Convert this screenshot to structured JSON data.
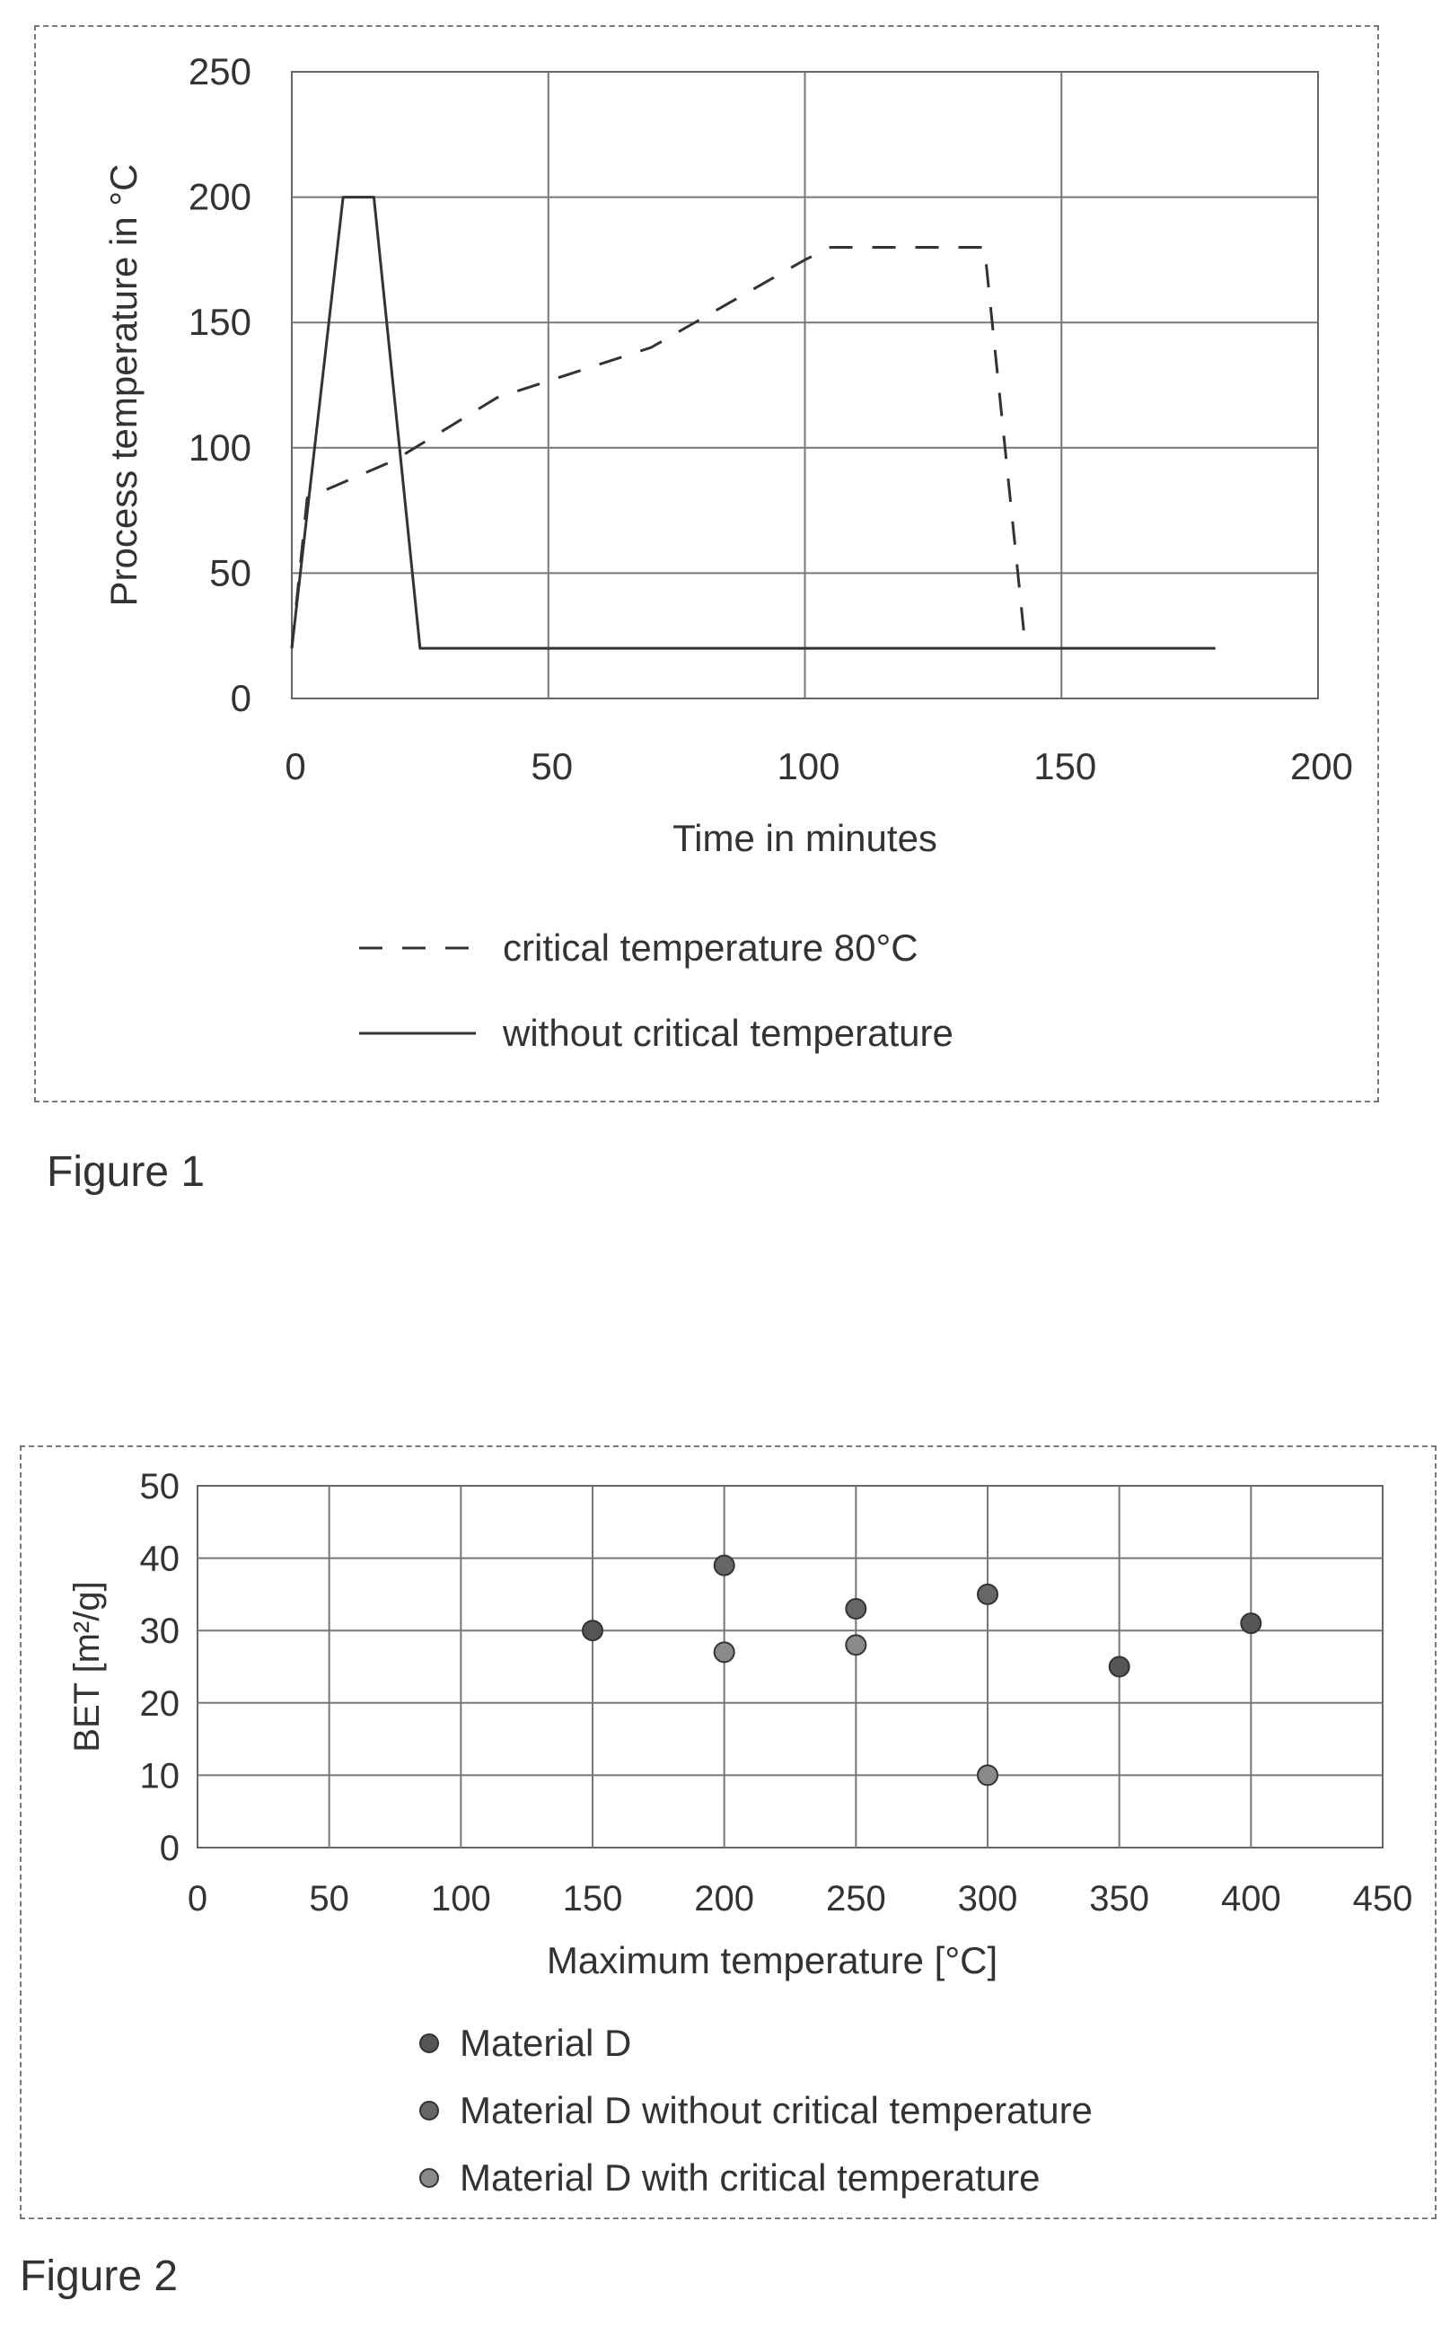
{
  "figure1": {
    "caption": "Figure 1",
    "chart_data": {
      "type": "line",
      "xlabel": "Time in minutes",
      "ylabel": "Process temperature in °C",
      "xlim": [
        0,
        200
      ],
      "ylim": [
        0,
        250
      ],
      "xticks": [
        "0",
        "50",
        "100",
        "150",
        "200"
      ],
      "yticks": [
        "0",
        "50",
        "100",
        "150",
        "200",
        "250"
      ],
      "grid": true,
      "legend_position": "bottom",
      "series": [
        {
          "name": "critical temperature 80°C",
          "style": "dashed",
          "points": [
            [
              0,
              20
            ],
            [
              3,
              80
            ],
            [
              20,
              95
            ],
            [
              40,
              120
            ],
            [
              70,
              140
            ],
            [
              100,
              175
            ],
            [
              105,
              180
            ],
            [
              135,
              180
            ],
            [
              143,
              20
            ]
          ]
        },
        {
          "name": "without critical temperature",
          "style": "solid",
          "points": [
            [
              0,
              20
            ],
            [
              10,
              200
            ],
            [
              16,
              200
            ],
            [
              25,
              20
            ],
            [
              180,
              20
            ]
          ]
        }
      ]
    }
  },
  "figure2": {
    "caption": "Figure 2",
    "chart_data": {
      "type": "scatter",
      "xlabel": "Maximum temperature [°C]",
      "ylabel": "BET [m²/g]",
      "xlim": [
        0,
        450
      ],
      "ylim": [
        0,
        50
      ],
      "xticks": [
        "0",
        "50",
        "100",
        "150",
        "200",
        "250",
        "300",
        "350",
        "400",
        "450"
      ],
      "yticks": [
        "0",
        "10",
        "20",
        "30",
        "40",
        "50"
      ],
      "grid": true,
      "legend_position": "bottom",
      "series": [
        {
          "name": "Material D",
          "color": "#555555",
          "points": [
            [
              150,
              30
            ],
            [
              400,
              31
            ],
            [
              350,
              25
            ]
          ]
        },
        {
          "name": "Material D without critical temperature",
          "color": "#666666",
          "points": [
            [
              200,
              39
            ],
            [
              250,
              33
            ],
            [
              300,
              35
            ]
          ]
        },
        {
          "name": "Material D with critical temperature",
          "color": "#8a8a8a",
          "points": [
            [
              200,
              27
            ],
            [
              250,
              28
            ],
            [
              300,
              10
            ]
          ]
        }
      ]
    }
  }
}
